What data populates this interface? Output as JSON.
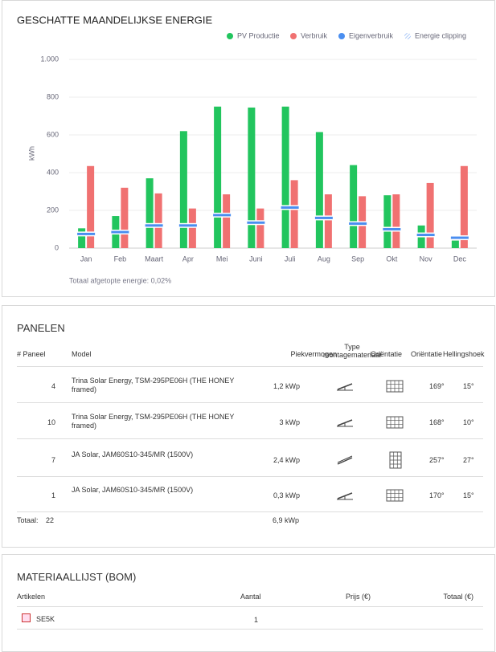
{
  "chart_data": {
    "type": "bar",
    "title": "GESCHATTE MAANDELIJKSE ENERGIE",
    "ylabel": "kWh",
    "categories": [
      "Jan",
      "Feb",
      "Maart",
      "Apr",
      "Mei",
      "Juni",
      "Juli",
      "Aug",
      "Sep",
      "Okt",
      "Nov",
      "Dec"
    ],
    "series": [
      {
        "name": "PV Productie",
        "color": "#22c55e",
        "values": [
          105,
          170,
          370,
          620,
          750,
          745,
          750,
          615,
          440,
          280,
          120,
          40
        ]
      },
      {
        "name": "Verbruik",
        "color": "#f07171",
        "values": [
          435,
          320,
          290,
          210,
          285,
          210,
          360,
          285,
          275,
          285,
          345,
          435
        ]
      },
      {
        "name": "Eigenverbruik",
        "color": "#4a8ef0",
        "values": [
          75,
          85,
          120,
          120,
          175,
          135,
          215,
          160,
          130,
          100,
          70,
          55
        ]
      },
      {
        "name": "Energie clipping",
        "color": "#8fb5f5",
        "values": [
          0,
          0,
          0,
          0,
          0,
          0,
          0,
          0,
          0,
          0,
          0,
          0
        ]
      }
    ],
    "ylim": [
      0,
      1000
    ],
    "yticks": [
      0,
      200,
      400,
      600,
      800,
      {
        "value": 1000,
        "label": "1.000"
      }
    ],
    "grid": true,
    "note": "Totaal afgetopte energie: 0,02%"
  },
  "panels": {
    "title": "PANELEN",
    "headers": [
      "# Paneel",
      "Model",
      "Piekvermogen",
      "Type montagemateriaal",
      "Oriëntatie",
      "Oriëntatie",
      "Hellingshoek"
    ],
    "rows": [
      {
        "count": 4,
        "model": "Trina Solar Energy, TSM-295PE06H (THE HONEY framed)",
        "power": "1,2 kWp",
        "azimuth": "169°",
        "tilt": "15°"
      },
      {
        "count": 10,
        "model": "Trina Solar Energy, TSM-295PE06H (THE HONEY framed)",
        "power": "3 kWp",
        "azimuth": "168°",
        "tilt": "10°"
      },
      {
        "count": 7,
        "model": "JA Solar, JAM60S10-345/MR (1500V)",
        "power": "2,4 kWp",
        "azimuth": "257°",
        "tilt": "27°"
      },
      {
        "count": 1,
        "model": "JA Solar, JAM60S10-345/MR (1500V)",
        "power": "0,3 kWp",
        "azimuth": "170°",
        "tilt": "15°"
      }
    ],
    "total_label": "Totaal:",
    "total_count": 22,
    "total_power": "6,9 kWp"
  },
  "bom": {
    "title": "MATERIAALLIJST (BOM)",
    "headers": [
      "Artikelen",
      "Aantal",
      "Prijs (€)",
      "Totaal (€)"
    ],
    "rows": [
      {
        "item": "SE5K",
        "qty": 1
      }
    ]
  }
}
